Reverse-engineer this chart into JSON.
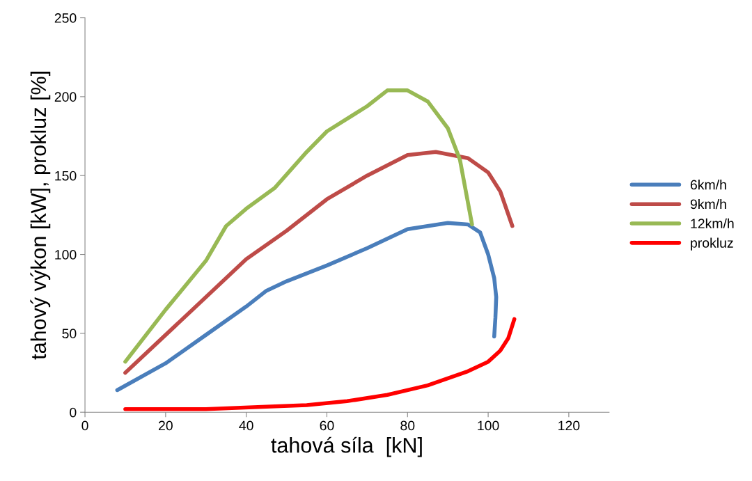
{
  "chart_data": {
    "type": "line",
    "xlabel": "tahová síla  [kN]",
    "ylabel": "tahový výkon [kW], prokluz [%]",
    "xlim": [
      0,
      130
    ],
    "xticks": [
      0,
      20,
      40,
      60,
      80,
      100,
      120
    ],
    "ylim": [
      0,
      250
    ],
    "yticks": [
      0,
      50,
      100,
      150,
      200,
      250
    ],
    "grid": false,
    "legend": "right",
    "marker": "none",
    "line_style": "solid",
    "series": [
      {
        "name": "6km/h",
        "color": "#4a7ebb",
        "x": [
          8,
          20,
          30,
          40,
          45,
          50,
          60,
          70,
          80,
          90,
          95,
          98,
          100,
          101.5,
          102,
          101.8,
          101.5
        ],
        "values": [
          14,
          31,
          49,
          67,
          77,
          83,
          93,
          104,
          116,
          120,
          119,
          114,
          100,
          85,
          73,
          60,
          48
        ]
      },
      {
        "name": "9km/h",
        "color": "#be4b48",
        "x": [
          10,
          20,
          30,
          40,
          50,
          60,
          70,
          80,
          87,
          95,
          100,
          103,
          106
        ],
        "values": [
          25,
          49,
          73,
          97,
          115,
          135,
          150,
          163,
          165,
          161,
          152,
          140,
          118
        ]
      },
      {
        "name": "12km/h",
        "color": "#98b954",
        "x": [
          10,
          20,
          30,
          35,
          40,
          47,
          55,
          60,
          70,
          75,
          80,
          85,
          90,
          93,
          96
        ],
        "values": [
          32,
          65,
          96,
          118,
          129,
          142,
          165,
          178,
          194,
          204,
          204,
          197,
          180,
          160,
          119
        ]
      },
      {
        "name": "prokluz",
        "color": "#ff0000",
        "x": [
          10,
          30,
          45,
          55,
          65,
          75,
          85,
          95,
          100,
          103,
          105,
          106.5
        ],
        "values": [
          2,
          2,
          3.5,
          4.5,
          7,
          11,
          17,
          26,
          32,
          39,
          47,
          59
        ]
      }
    ]
  }
}
